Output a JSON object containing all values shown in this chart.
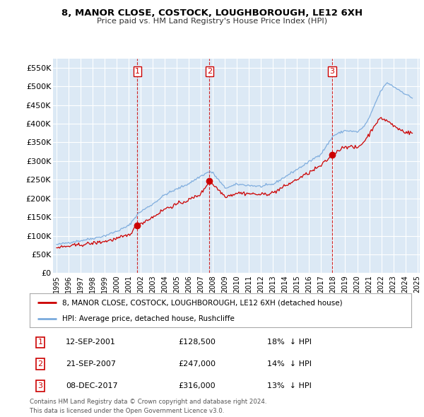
{
  "title": "8, MANOR CLOSE, COSTOCK, LOUGHBOROUGH, LE12 6XH",
  "subtitle": "Price paid vs. HM Land Registry's House Price Index (HPI)",
  "ylim": [
    0,
    575000
  ],
  "yticks": [
    0,
    50000,
    100000,
    150000,
    200000,
    250000,
    300000,
    350000,
    400000,
    450000,
    500000,
    550000
  ],
  "ytick_labels": [
    "£0",
    "£50K",
    "£100K",
    "£150K",
    "£200K",
    "£250K",
    "£300K",
    "£350K",
    "£400K",
    "£450K",
    "£500K",
    "£550K"
  ],
  "background_color": "#ffffff",
  "plot_bg_color": "#dce9f5",
  "grid_color": "#ffffff",
  "sale_color": "#cc0000",
  "hpi_color": "#7aaadd",
  "dashed_line_color": "#cc0000",
  "legend_sale_label": "8, MANOR CLOSE, COSTOCK, LOUGHBOROUGH, LE12 6XH (detached house)",
  "legend_hpi_label": "HPI: Average price, detached house, Rushcliffe",
  "transactions": [
    {
      "num": 1,
      "date": "12-SEP-2001",
      "price": 128500,
      "pct": "18%",
      "direction": "↓",
      "x_year": 2001.71
    },
    {
      "num": 2,
      "date": "21-SEP-2007",
      "price": 247000,
      "pct": "14%",
      "direction": "↓",
      "x_year": 2007.71
    },
    {
      "num": 3,
      "date": "08-DEC-2017",
      "price": 316000,
      "pct": "13%",
      "direction": "↓",
      "x_year": 2017.92
    }
  ],
  "footer_line1": "Contains HM Land Registry data © Crown copyright and database right 2024.",
  "footer_line2": "This data is licensed under the Open Government Licence v3.0.",
  "xlim_left": 1994.7,
  "xlim_right": 2025.2
}
